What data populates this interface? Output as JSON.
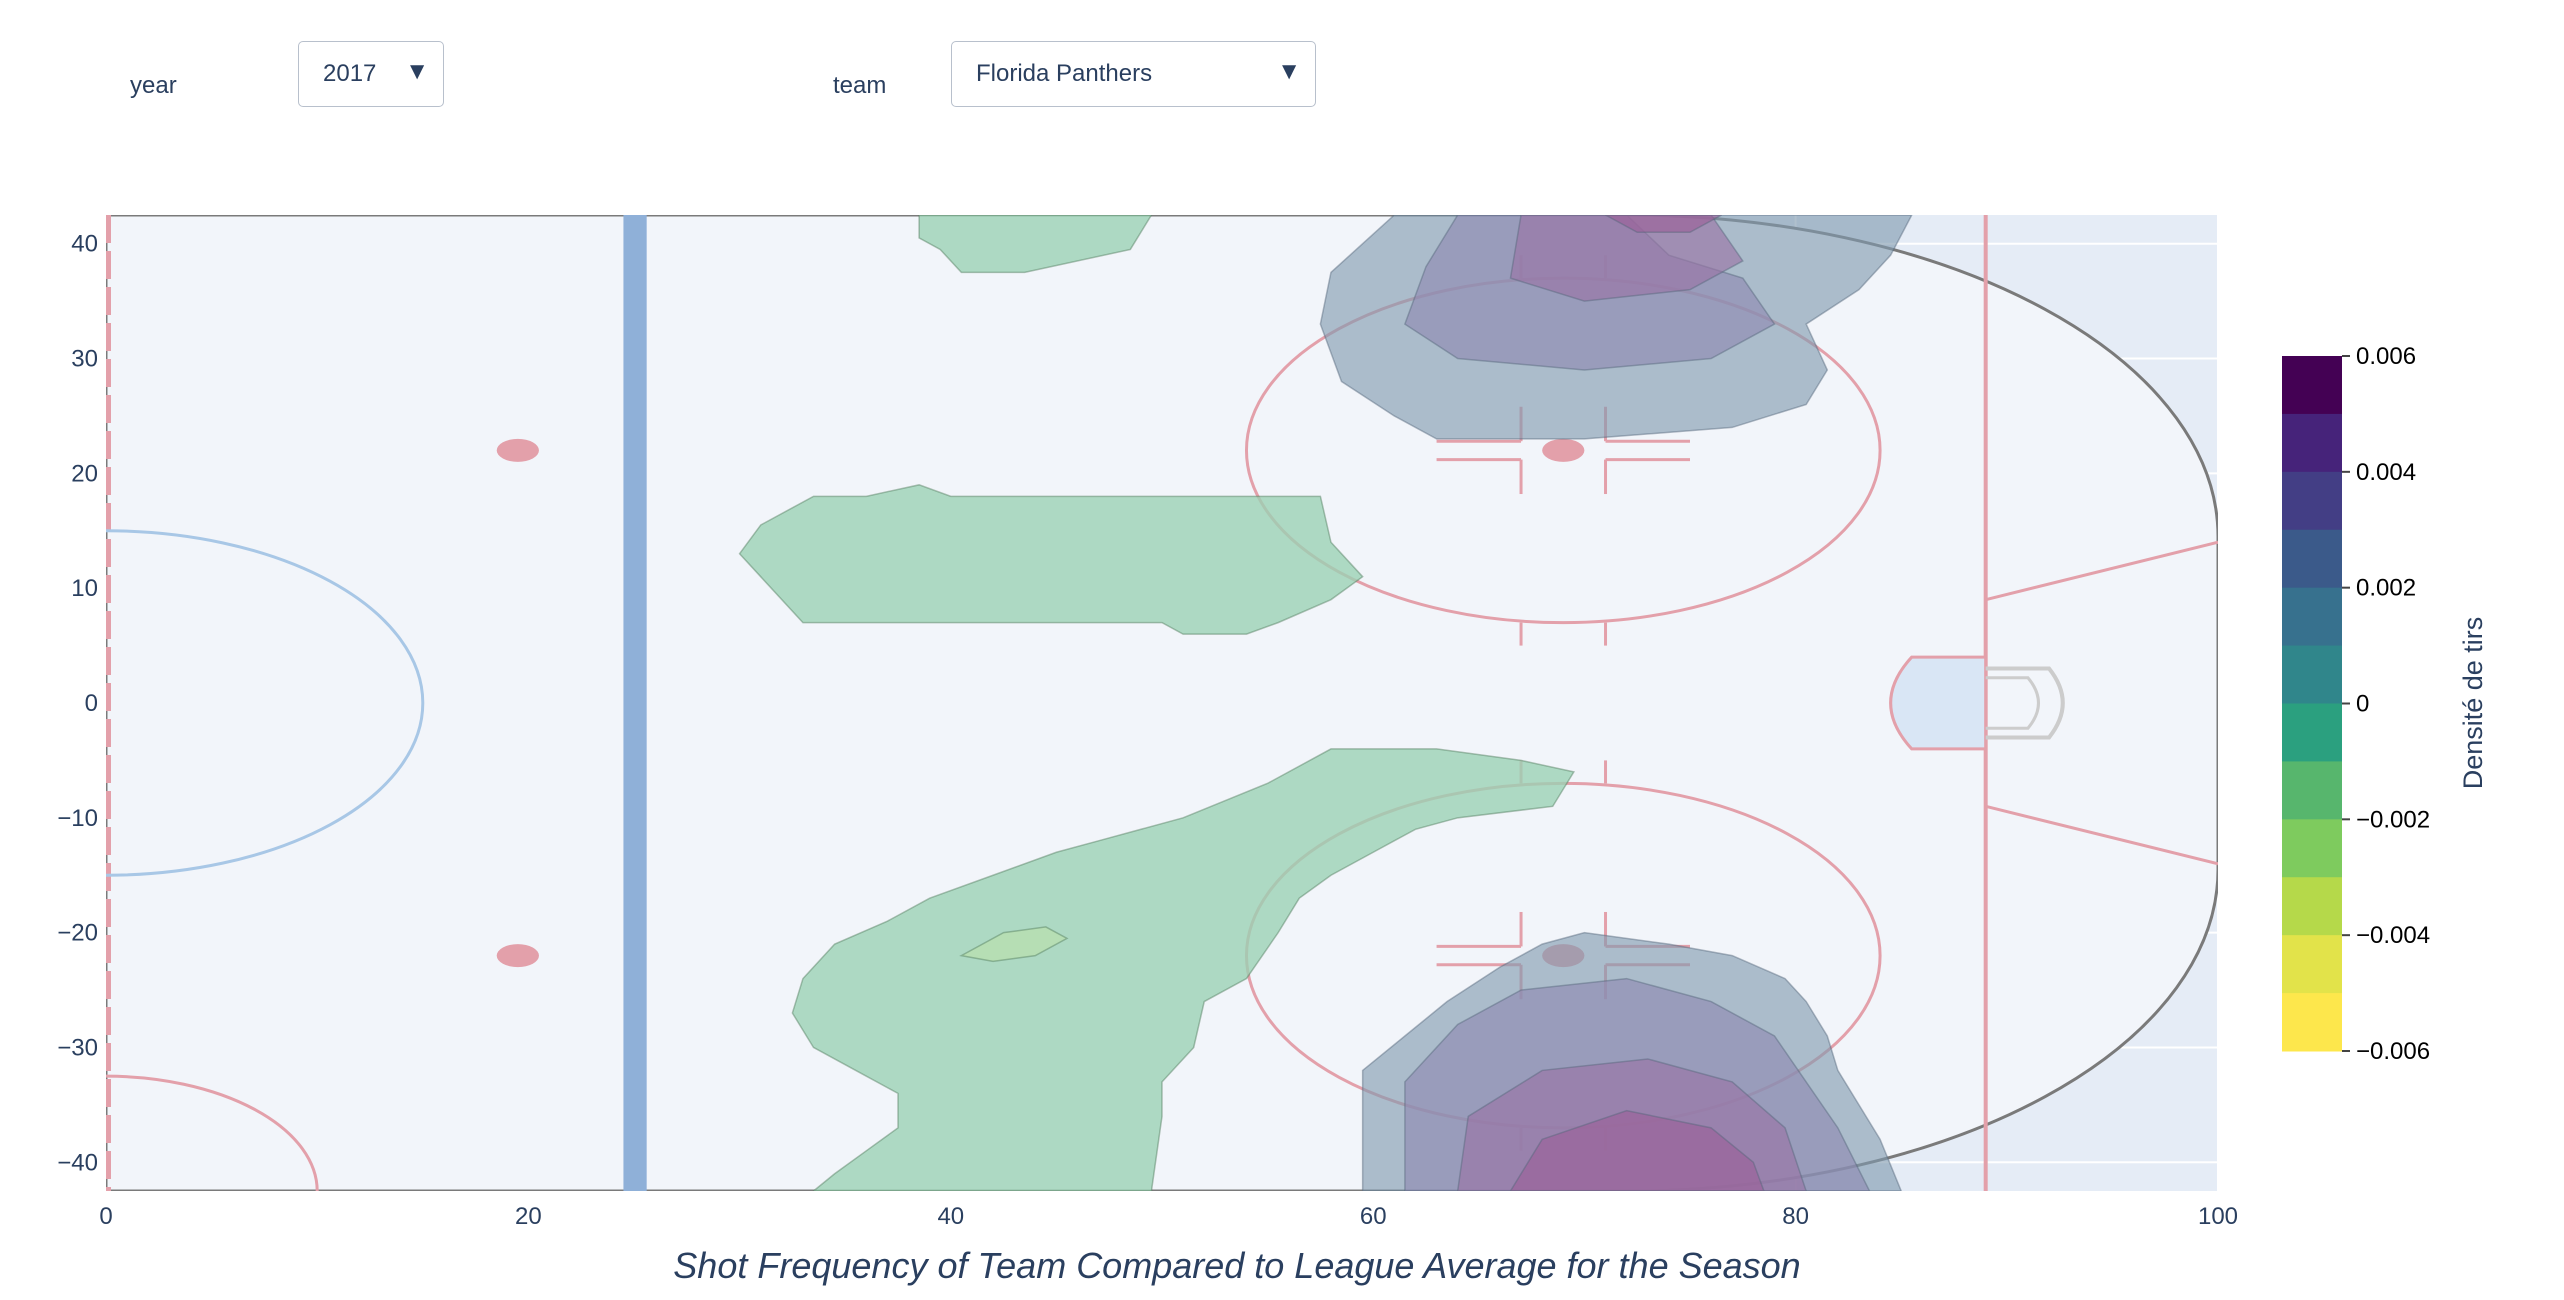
{
  "controls": {
    "year_label": "year",
    "year_value": "2017",
    "team_label": "team",
    "team_value": "Florida Panthers",
    "caret": "▼"
  },
  "colors": {
    "plot_bg": "#e5ecf6",
    "rink_ice": "#f2f5fa",
    "red_lines": "#e3a0aa",
    "blue_line": "#8fb0d8",
    "crease": "#d9e6f5",
    "neg_fill": "#9ad1b4",
    "pos_fill": "#7f99ae",
    "pos_fill_2": "#8e89b2",
    "pos_fill_3": "#9a72a4"
  },
  "chart_data": {
    "type": "heatmap",
    "subtype": "contour",
    "xlabel": "Shot Frequency of Team Compared to League Average for the Season",
    "xlim": [
      0,
      100
    ],
    "ylim": [
      -42.5,
      42.5
    ],
    "x_ticks": [
      0,
      20,
      40,
      60,
      80,
      100
    ],
    "y_ticks": [
      -40,
      -30,
      -20,
      -10,
      0,
      10,
      20,
      30,
      40
    ],
    "y_tick_labels": [
      "−40",
      "−30",
      "−20",
      "−10",
      "0",
      "10",
      "20",
      "30",
      "40"
    ],
    "colorbar": {
      "title": "Densité de tirs",
      "range": [
        -0.006,
        0.006
      ],
      "ticks": [
        0.006,
        0.004,
        0.002,
        0,
        -0.002,
        -0.004,
        -0.006
      ],
      "tick_labels": [
        "0.006",
        "0.004",
        "0.002",
        "0",
        "−0.002",
        "−0.004",
        "−0.006"
      ],
      "bands": [
        "#440154",
        "#46237a",
        "#433e85",
        "#3b5a8a",
        "#37718e",
        "#30868b",
        "#2ba07f",
        "#57b66d",
        "#7ecb5e",
        "#b5d94a",
        "#e2e34a",
        "#fde74c"
      ]
    },
    "regions": [
      {
        "sign": "negative",
        "level": -0.001,
        "points": [
          [
            38.5,
            42.5
          ],
          [
            49.5,
            42.5
          ],
          [
            48.5,
            39.5
          ],
          [
            43.5,
            37.5
          ],
          [
            40.5,
            37.5
          ],
          [
            39.5,
            39.5
          ],
          [
            38.5,
            40.5
          ]
        ]
      },
      {
        "sign": "negative",
        "level": -0.001,
        "points": [
          [
            30,
            13
          ],
          [
            31,
            11
          ],
          [
            33,
            7
          ],
          [
            50,
            7
          ],
          [
            51,
            6
          ],
          [
            54,
            6
          ],
          [
            55.5,
            7
          ],
          [
            58,
            9
          ],
          [
            59.5,
            11
          ],
          [
            58,
            14
          ],
          [
            57.5,
            18
          ],
          [
            40,
            18
          ],
          [
            38.5,
            19
          ],
          [
            36,
            18
          ],
          [
            33.5,
            18
          ],
          [
            31,
            15.5
          ]
        ]
      },
      {
        "sign": "negative",
        "level": -0.001,
        "points": [
          [
            33.5,
            -42.5
          ],
          [
            34.5,
            -41
          ],
          [
            36,
            -39
          ],
          [
            37.5,
            -37
          ],
          [
            37.5,
            -34
          ],
          [
            35.5,
            -32
          ],
          [
            33.5,
            -30
          ],
          [
            32.5,
            -27
          ],
          [
            33,
            -24
          ],
          [
            34.5,
            -21
          ],
          [
            37,
            -19
          ],
          [
            39,
            -17
          ],
          [
            42,
            -15
          ],
          [
            45,
            -13
          ],
          [
            47,
            -12
          ],
          [
            51,
            -10
          ],
          [
            55,
            -7
          ],
          [
            58,
            -4
          ],
          [
            63,
            -4
          ],
          [
            67,
            -5
          ],
          [
            69.5,
            -6
          ],
          [
            68.5,
            -9
          ],
          [
            64,
            -10
          ],
          [
            62,
            -11
          ],
          [
            60,
            -13
          ],
          [
            58,
            -15
          ],
          [
            56.5,
            -17
          ],
          [
            55.5,
            -20
          ],
          [
            54,
            -24
          ],
          [
            52,
            -26
          ],
          [
            51.5,
            -30
          ],
          [
            50,
            -33
          ],
          [
            50,
            -36
          ],
          [
            49.5,
            -42.5
          ]
        ]
      },
      {
        "sign": "negative",
        "level": -0.002,
        "points": [
          [
            40.5,
            -22
          ],
          [
            42.5,
            -20
          ],
          [
            44.5,
            -19.5
          ],
          [
            45.5,
            -20.5
          ],
          [
            44,
            -22
          ],
          [
            42,
            -22.5
          ]
        ]
      },
      {
        "sign": "positive",
        "level": 0.001,
        "points": [
          [
            61,
            42.5
          ],
          [
            59.5,
            40
          ],
          [
            58,
            37.5
          ],
          [
            57.5,
            33
          ],
          [
            58.5,
            28
          ],
          [
            61,
            25
          ],
          [
            63,
            23
          ],
          [
            70,
            23
          ],
          [
            77,
            24
          ],
          [
            80.5,
            26
          ],
          [
            81.5,
            29
          ],
          [
            80.5,
            33
          ],
          [
            83,
            36
          ],
          [
            84.5,
            39
          ],
          [
            85.5,
            42.5
          ]
        ]
      },
      {
        "sign": "positive",
        "level": 0.002,
        "points": [
          [
            64,
            42.5
          ],
          [
            62.5,
            38
          ],
          [
            61.5,
            33
          ],
          [
            64,
            30
          ],
          [
            70,
            29
          ],
          [
            76,
            30
          ],
          [
            79,
            33
          ],
          [
            77.5,
            37
          ],
          [
            74,
            39
          ],
          [
            72,
            42.5
          ]
        ]
      },
      {
        "sign": "positive",
        "level": 0.003,
        "points": [
          [
            67,
            42.5
          ],
          [
            66.5,
            37
          ],
          [
            70,
            35
          ],
          [
            75,
            36
          ],
          [
            77.5,
            38.5
          ],
          [
            76,
            42.5
          ]
        ]
      },
      {
        "sign": "positive",
        "level": 0.004,
        "points": [
          [
            71,
            42.5
          ],
          [
            72.5,
            41
          ],
          [
            75,
            41
          ],
          [
            76.5,
            42.5
          ]
        ]
      },
      {
        "sign": "positive",
        "level": 0.001,
        "points": [
          [
            59.5,
            -42.5
          ],
          [
            59.5,
            -32
          ],
          [
            61.5,
            -29
          ],
          [
            63.5,
            -26
          ],
          [
            66,
            -23
          ],
          [
            68,
            -21
          ],
          [
            70,
            -20
          ],
          [
            74,
            -21
          ],
          [
            77,
            -22
          ],
          [
            79.5,
            -24
          ],
          [
            80.5,
            -26
          ],
          [
            81.5,
            -29
          ],
          [
            82,
            -32
          ],
          [
            83,
            -35
          ],
          [
            84,
            -38
          ],
          [
            85,
            -42.5
          ]
        ]
      },
      {
        "sign": "positive",
        "level": 0.002,
        "points": [
          [
            61.5,
            -42.5
          ],
          [
            61.5,
            -33
          ],
          [
            64,
            -28
          ],
          [
            67,
            -25
          ],
          [
            72,
            -24
          ],
          [
            76,
            -26
          ],
          [
            79,
            -29
          ],
          [
            80.5,
            -33
          ],
          [
            82,
            -37
          ],
          [
            83.5,
            -42.5
          ]
        ]
      },
      {
        "sign": "positive",
        "level": 0.003,
        "points": [
          [
            64,
            -42.5
          ],
          [
            64.5,
            -36
          ],
          [
            68,
            -32
          ],
          [
            73,
            -31
          ],
          [
            77,
            -33
          ],
          [
            79.5,
            -37
          ],
          [
            80.5,
            -42.5
          ]
        ]
      },
      {
        "sign": "positive",
        "level": 0.004,
        "points": [
          [
            66.5,
            -42.5
          ],
          [
            68,
            -38
          ],
          [
            72,
            -35.5
          ],
          [
            76,
            -37
          ],
          [
            78,
            -40
          ],
          [
            78.5,
            -42.5
          ]
        ]
      }
    ]
  }
}
